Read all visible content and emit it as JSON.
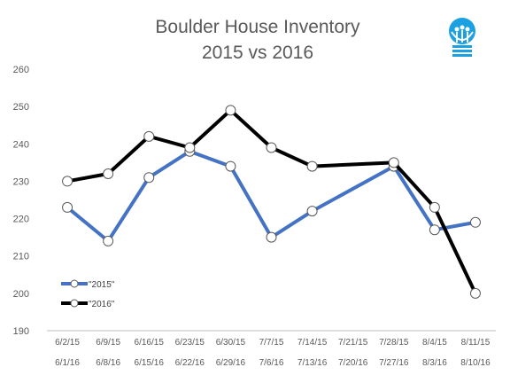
{
  "chart_data": {
    "type": "line",
    "title": "Boulder House Inventory",
    "subtitle": "2015 vs 2016",
    "x_2015": [
      "6/2/15",
      "6/9/15",
      "6/16/15",
      "6/23/15",
      "6/30/15",
      "7/7/15",
      "7/14/15",
      "7/21/15",
      "7/28/15",
      "8/4/15",
      "8/11/15"
    ],
    "x_2016": [
      "6/1/16",
      "6/8/16",
      "6/15/16",
      "6/22/16",
      "6/29/16",
      "7/6/16",
      "7/13/16",
      "7/20/16",
      "7/27/16",
      "8/3/16",
      "8/10/16"
    ],
    "series": [
      {
        "name": "\"2015\"",
        "color": "#4472c4",
        "points": [
          {
            "x": "6/2/15",
            "y": 223
          },
          {
            "x": "6/9/15",
            "y": 214
          },
          {
            "x": "6/16/15",
            "y": 231
          },
          {
            "x": "6/23/15",
            "y": 238
          },
          {
            "x": "6/30/15",
            "y": 234
          },
          {
            "x": "7/7/15",
            "y": 215
          },
          {
            "x": "7/14/15",
            "y": 222
          },
          {
            "x": "7/28/15",
            "y": 234
          },
          {
            "x": "8/4/15",
            "y": 217
          },
          {
            "x": "8/11/15",
            "y": 219
          }
        ]
      },
      {
        "name": "\"2016\"",
        "color": "#000000",
        "points": [
          {
            "x": "6/1/16",
            "y": 230
          },
          {
            "x": "6/8/16",
            "y": 232
          },
          {
            "x": "6/15/16",
            "y": 242
          },
          {
            "x": "6/22/16",
            "y": 239
          },
          {
            "x": "6/29/16",
            "y": 249
          },
          {
            "x": "7/6/16",
            "y": 239
          },
          {
            "x": "7/13/16",
            "y": 234
          },
          {
            "x": "7/27/16",
            "y": 235
          },
          {
            "x": "8/3/16",
            "y": 223
          },
          {
            "x": "8/10/16",
            "y": 200
          }
        ]
      }
    ],
    "yticks": [
      190,
      200,
      210,
      220,
      230,
      240,
      250,
      260
    ],
    "ylim": [
      190,
      260
    ],
    "grid": false,
    "legend_position": "bottom-left",
    "xlabel": "",
    "ylabel": ""
  },
  "logo": {
    "name": "lightbulb-logo-icon",
    "color": "#1ba1e2"
  }
}
